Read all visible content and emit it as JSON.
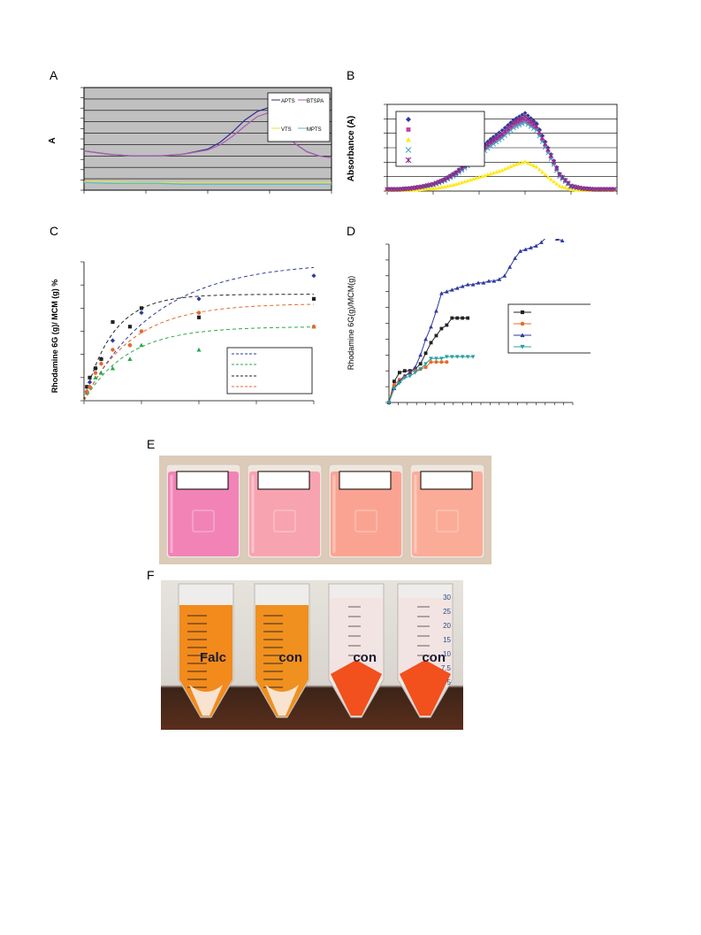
{
  "panels": {
    "a": {
      "letter": "A",
      "chart_data": {
        "type": "line",
        "ylabel": "A",
        "xlabel": "",
        "background": "#c0c0c0",
        "grid": true,
        "x": [
          0,
          10,
          20,
          30,
          40,
          50,
          55,
          60,
          65,
          70,
          75,
          80,
          85,
          90,
          95,
          100
        ],
        "series": [
          {
            "name": "APTS",
            "color": "#2e2e8c",
            "values": [
              0.46,
              0.42,
              0.4,
              0.4,
              0.42,
              0.48,
              0.56,
              0.68,
              0.82,
              0.92,
              0.97,
              0.78,
              0.55,
              0.45,
              0.4,
              0.38
            ]
          },
          {
            "name": "BTSPA",
            "color": "#b05ab0",
            "values": [
              0.46,
              0.42,
              0.4,
              0.4,
              0.42,
              0.47,
              0.53,
              0.63,
              0.75,
              0.86,
              0.91,
              0.75,
              0.55,
              0.45,
              0.4,
              0.38
            ]
          },
          {
            "name": "VTS",
            "color": "#e8e830",
            "values": [
              0.1,
              0.1,
              0.09,
              0.09,
              0.09,
              0.09,
              0.09,
              0.09,
              0.09,
              0.09,
              0.09,
              0.09,
              0.09,
              0.09,
              0.09,
              0.09
            ]
          },
          {
            "name": "MPTS",
            "color": "#5ab4d8",
            "values": [
              0.09,
              0.08,
              0.08,
              0.08,
              0.07,
              0.07,
              0.07,
              0.07,
              0.07,
              0.07,
              0.07,
              0.07,
              0.07,
              0.07,
              0.07,
              0.07
            ]
          }
        ],
        "ylim": [
          0,
          1.2
        ],
        "legend": "top-right"
      }
    },
    "b": {
      "letter": "B",
      "chart_data": {
        "type": "scatter",
        "ylabel": "Absorbance (A)",
        "xlabel": "",
        "grid": true,
        "x": [
          0,
          5,
          10,
          15,
          20,
          25,
          30,
          35,
          40,
          45,
          50,
          55,
          60,
          65,
          70,
          75,
          80,
          85,
          90,
          95,
          100
        ],
        "series": [
          {
            "marker": "diamond",
            "color": "#2e3a9c",
            "values": [
              0.02,
              0.02,
              0.03,
              0.05,
              0.08,
              0.14,
              0.22,
              0.34,
              0.48,
              0.6,
              0.7,
              0.82,
              0.9,
              0.78,
              0.5,
              0.2,
              0.06,
              0.03,
              0.02,
              0.02,
              0.02
            ]
          },
          {
            "marker": "square",
            "color": "#c040a0",
            "values": [
              0.02,
              0.02,
              0.03,
              0.05,
              0.08,
              0.13,
              0.2,
              0.3,
              0.43,
              0.55,
              0.64,
              0.76,
              0.82,
              0.72,
              0.46,
              0.18,
              0.05,
              0.03,
              0.02,
              0.02,
              0.02
            ]
          },
          {
            "marker": "triangle",
            "color": "#ffe81a",
            "values": [
              0.01,
              0.01,
              0.01,
              0.02,
              0.03,
              0.05,
              0.08,
              0.12,
              0.16,
              0.2,
              0.24,
              0.3,
              0.34,
              0.28,
              0.16,
              0.06,
              0.02,
              0.01,
              0.01,
              0.01,
              0.01
            ]
          },
          {
            "marker": "x",
            "color": "#40a0c0",
            "values": [
              0.02,
              0.02,
              0.03,
              0.05,
              0.07,
              0.12,
              0.19,
              0.29,
              0.41,
              0.52,
              0.61,
              0.73,
              0.79,
              0.7,
              0.44,
              0.17,
              0.05,
              0.03,
              0.02,
              0.02,
              0.02
            ]
          },
          {
            "marker": "star",
            "color": "#8a2a8a",
            "values": [
              0.02,
              0.02,
              0.03,
              0.05,
              0.08,
              0.13,
              0.21,
              0.32,
              0.45,
              0.57,
              0.66,
              0.79,
              0.86,
              0.75,
              0.48,
              0.19,
              0.06,
              0.03,
              0.02,
              0.02,
              0.02
            ]
          }
        ],
        "ylim": [
          0,
          1.0
        ],
        "legend": "top-left"
      }
    },
    "c": {
      "letter": "C",
      "chart_data": {
        "type": "scatter",
        "ylabel": "Rhodamine 6G (g)/ MCM (g) %",
        "xlabel": "",
        "x_range": [
          0,
          40
        ],
        "ylim": [
          0,
          30
        ],
        "series": [
          {
            "color": "#2e3a9c",
            "marker": "diamond",
            "x": [
              0.5,
              1,
              2,
              3,
              5,
              8,
              10,
              20,
              40
            ],
            "values": [
              2,
              4,
              7,
              9,
              13,
              12,
              19,
              22,
              27
            ]
          },
          {
            "color": "#222222",
            "marker": "square",
            "x": [
              0.5,
              1,
              2,
              3,
              5,
              8,
              10,
              20,
              40
            ],
            "values": [
              3,
              5,
              7,
              9,
              17,
              16,
              20,
              18,
              22
            ]
          },
          {
            "color": "#2aa84a",
            "marker": "triangle",
            "x": [
              0.5,
              1,
              2,
              3,
              5,
              8,
              10,
              20,
              40
            ],
            "values": [
              2,
              3,
              5,
              6,
              7,
              9,
              12,
              11,
              16
            ]
          },
          {
            "color": "#e46a2a",
            "marker": "circle",
            "x": [
              0.5,
              1,
              2,
              3,
              5,
              8,
              10,
              20,
              40
            ],
            "values": [
              2,
              3,
              6,
              8,
              11,
              12,
              15,
              19,
              16
            ]
          }
        ],
        "fit_lines": [
          {
            "color": "#2e3a9c",
            "max": 30,
            "k": 0.08
          },
          {
            "color": "#222222",
            "max": 23,
            "k": 0.2
          },
          {
            "color": "#2aa84a",
            "max": 16,
            "k": 0.13
          },
          {
            "color": "#e46a2a",
            "max": 21,
            "k": 0.12
          }
        ],
        "legend": "bottom-right"
      }
    },
    "d": {
      "letter": "D",
      "chart_data": {
        "type": "line",
        "ylabel": "Rhodamine 6G(g)/MCM(g)",
        "xlabel": "",
        "x_range": [
          0,
          35
        ],
        "ylim": [
          0,
          0.9
        ],
        "series": [
          {
            "color": "#222222",
            "marker": "square",
            "x": [
              0,
              1,
              2,
              3,
              4,
              5,
              6,
              7,
              8,
              9,
              10,
              11,
              12,
              13,
              14,
              15
            ],
            "values": [
              0,
              0.12,
              0.17,
              0.18,
              0.18,
              0.19,
              0.22,
              0.28,
              0.34,
              0.38,
              0.42,
              0.44,
              0.48,
              0.48,
              0.48,
              0.48
            ]
          },
          {
            "color": "#e46a2a",
            "marker": "circle",
            "x": [
              0,
              1,
              2,
              3,
              4,
              5,
              6,
              7,
              8,
              9,
              10,
              11
            ],
            "values": [
              0,
              0.1,
              0.13,
              0.15,
              0.17,
              0.18,
              0.19,
              0.2,
              0.23,
              0.23,
              0.23,
              0.23
            ]
          },
          {
            "color": "#2e3a9c",
            "marker": "triangle",
            "x": [
              0,
              1,
              2,
              3,
              4,
              5,
              6,
              7,
              8,
              9,
              10,
              11,
              12,
              13,
              14,
              15,
              16,
              17,
              18,
              19,
              20,
              21,
              22,
              23,
              24,
              25,
              26,
              27,
              28,
              29,
              30,
              31,
              32,
              33
            ],
            "values": [
              0,
              0.08,
              0.12,
              0.15,
              0.17,
              0.2,
              0.27,
              0.36,
              0.43,
              0.52,
              0.62,
              0.63,
              0.64,
              0.65,
              0.66,
              0.67,
              0.67,
              0.68,
              0.68,
              0.69,
              0.69,
              0.7,
              0.72,
              0.77,
              0.82,
              0.86,
              0.87,
              0.88,
              0.89,
              0.91,
              0.94,
              0.94,
              0.93,
              0.92
            ]
          },
          {
            "color": "#2aa0a0",
            "marker": "triangle-down",
            "x": [
              0,
              1,
              2,
              3,
              4,
              5,
              6,
              7,
              8,
              9,
              10,
              11,
              12,
              13,
              14,
              15,
              16
            ],
            "values": [
              0,
              0.08,
              0.11,
              0.14,
              0.15,
              0.17,
              0.19,
              0.22,
              0.25,
              0.25,
              0.25,
              0.26,
              0.26,
              0.26,
              0.26,
              0.26,
              0.26
            ]
          }
        ],
        "legend": "right"
      }
    },
    "e": {
      "letter": "E",
      "beakers": [
        {
          "color": "#f283b7"
        },
        {
          "color": "#f8a3b0"
        },
        {
          "color": "#fba392"
        },
        {
          "color": "#fbac98"
        }
      ]
    },
    "f": {
      "letter": "F",
      "tube_marks": [
        "30",
        "25",
        "20",
        "15",
        "10",
        "7.5",
        "5"
      ],
      "label_1": "Falc",
      "label_2": "con",
      "label_3": "con",
      "label_4": "con"
    }
  }
}
